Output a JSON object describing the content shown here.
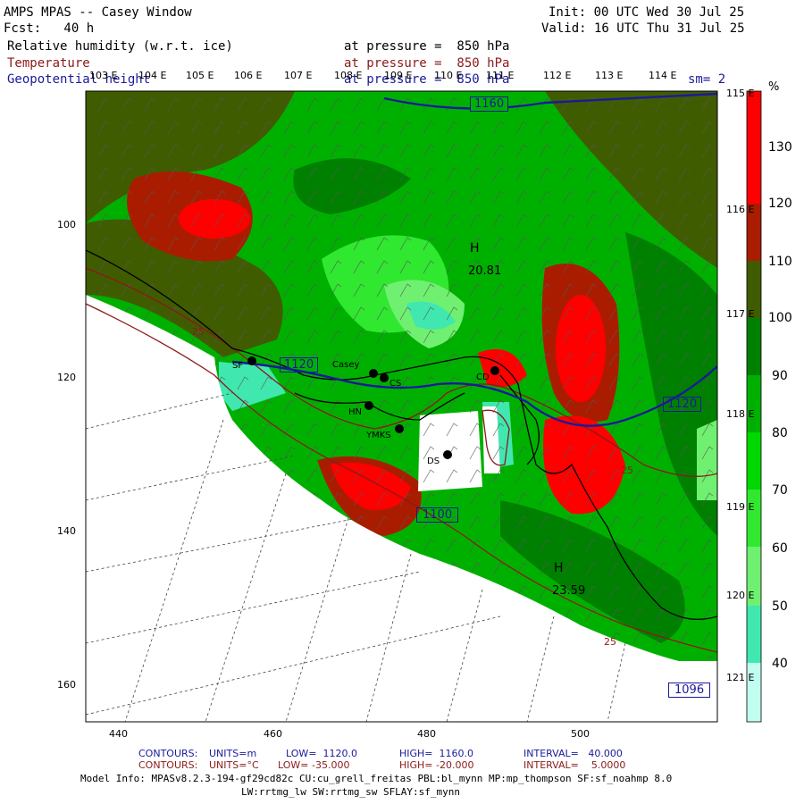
{
  "header": {
    "title": "AMPS MPAS -- Casey Window",
    "forecast": "Fcst:   40 h",
    "init": "Init: 00 UTC Wed 30 Jul 25",
    "valid": "Valid: 16 UTC Thu 31 Jul 25",
    "field1_name": "Relative humidity (w.r.t. ice)",
    "field1_level": "at pressure =  850 hPa",
    "field2_name": "Temperature",
    "field2_level": "at pressure =  850 hPa",
    "field3_name": "Geopotential height",
    "field3_level": "at pressure =  850 hPa",
    "smoothing": "sm= 2"
  },
  "map": {
    "x_ticks": [
      "440",
      "460",
      "480",
      "500"
    ],
    "y_ticks": [
      "100",
      "120",
      "140",
      "160"
    ],
    "lon_labels_top": [
      "103 E",
      "104 E",
      "105 E",
      "106 E",
      "107 E",
      "108 E",
      "109 E",
      "110 E",
      "111 E",
      "112 E",
      "113 E",
      "114 E"
    ],
    "lon_labels_right": [
      "115 E",
      "116 E",
      "117 E",
      "118 E",
      "119 E",
      "120 E",
      "121 E"
    ],
    "stations": [
      "SF",
      "Casey",
      "CS",
      "HN",
      "YMKS",
      "DS",
      "CD"
    ],
    "height_contours": [
      "1160",
      "1120",
      "1120",
      "1100",
      "1096"
    ],
    "temp_labels": [
      "25",
      "25",
      "25"
    ],
    "highs": [
      {
        "symbol": "H",
        "value": "20.81"
      },
      {
        "symbol": "H",
        "value": "23.59"
      }
    ]
  },
  "colorbar": {
    "unit": "%",
    "labels": [
      "130",
      "120",
      "110",
      "100",
      "90",
      "80",
      "70",
      "60",
      "50",
      "40"
    ],
    "colors": [
      "#ff0000",
      "#ff0000",
      "#aa1c00",
      "#405c00",
      "#008000",
      "#00b000",
      "#00d800",
      "#30e830",
      "#70f070",
      "#40e8b0",
      "#c0fff0"
    ]
  },
  "footer": {
    "contours1_label": "CONTOURS:",
    "contours1_units": "UNITS=m",
    "contours1_low": "LOW=  1120.0",
    "contours1_high": "HIGH=  1160.0",
    "contours1_interval": "INTERVAL=   40.000",
    "contours2_label": "CONTOURS:",
    "contours2_units": "UNITS=°C",
    "contours2_low": "LOW= -35.000",
    "contours2_high": "HIGH= -20.000",
    "contours2_interval": "INTERVAL=    5.0000",
    "model_info": "Model Info: MPASv8.2.3-194-gf29cd82c CU:cu_grell_freitas PBL:bl_mynn MP:mp_thompson SF:sf_noahmp 8.0",
    "model_info2": "LW:rrtmg_lw SW:rrtmg_sw SFLAY:sf_mynn"
  }
}
